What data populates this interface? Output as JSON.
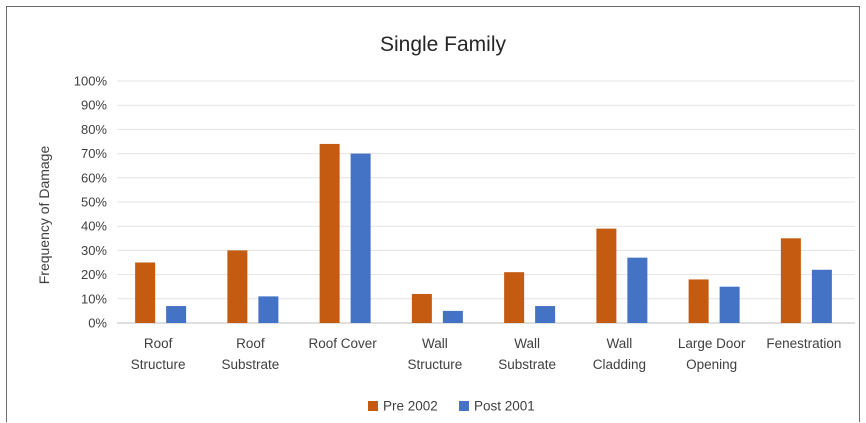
{
  "chart_data": {
    "type": "bar",
    "title": "Single Family",
    "ylabel": "Frequency of Damage",
    "xlabel": "",
    "ylim": [
      0,
      100
    ],
    "yticks": [
      "0%",
      "10%",
      "20%",
      "30%",
      "40%",
      "50%",
      "60%",
      "70%",
      "80%",
      "90%",
      "100%"
    ],
    "grid": true,
    "legend_position": "bottom",
    "categories": [
      [
        "Roof",
        "Structure"
      ],
      [
        "Roof",
        "Substrate"
      ],
      [
        "Roof Cover"
      ],
      [
        "Wall",
        "Structure"
      ],
      [
        "Wall",
        "Substrate"
      ],
      [
        "Wall",
        "Cladding"
      ],
      [
        "Large Door",
        "Opening"
      ],
      [
        "Fenestration"
      ]
    ],
    "series": [
      {
        "name": "Pre 2002",
        "color": "#c55a11",
        "values": [
          25,
          30,
          74,
          12,
          21,
          39,
          18,
          35
        ]
      },
      {
        "name": "Post 2001",
        "color": "#4472c4",
        "values": [
          7,
          11,
          70,
          5,
          7,
          27,
          15,
          22
        ]
      }
    ]
  }
}
